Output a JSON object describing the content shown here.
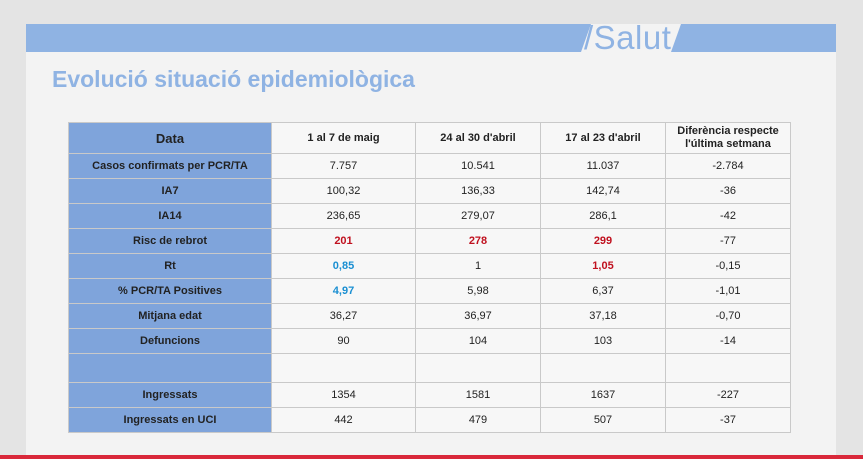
{
  "header": {
    "brand": "/Salut"
  },
  "title": "Evolució situació epidemiològica",
  "table": {
    "columns": [
      "Data",
      "1 al 7 de maig",
      "24 al 30 d'abril",
      "17 al 23 d'abril",
      "Diferència respecte l'última setmana"
    ],
    "rows": [
      {
        "label": "Casos confirmats per PCR/TA",
        "values": [
          "7.757",
          "10.541",
          "11.037",
          "-2.784"
        ]
      },
      {
        "label": "IA7",
        "values": [
          "100,32",
          "136,33",
          "142,74",
          "-36"
        ]
      },
      {
        "label": "IA14",
        "values": [
          "236,65",
          "279,07",
          "286,1",
          "-42"
        ]
      },
      {
        "label": "Risc de rebrot",
        "values": [
          "201",
          "278",
          "299",
          "-77"
        ]
      },
      {
        "label": "Rt",
        "values": [
          "0,85",
          "1",
          "1,05",
          "-0,15"
        ]
      },
      {
        "label": "% PCR/TA Positives",
        "values": [
          "4,97",
          "5,98",
          "6,37",
          "-1,01"
        ]
      },
      {
        "label": "Mitjana edat",
        "values": [
          "36,27",
          "36,97",
          "37,18",
          "-0,70"
        ]
      },
      {
        "label": "Defuncions",
        "values": [
          "90",
          "104",
          "103",
          "-14"
        ]
      },
      {
        "label": "Ingressats",
        "values": [
          "1354",
          "1581",
          "1637",
          "-227"
        ]
      },
      {
        "label": "Ingressats en UCI",
        "values": [
          "442",
          "479",
          "507",
          "-37"
        ]
      }
    ],
    "highlight_colors": {
      "red": "#c0111f",
      "blue": "#1a8fd2"
    }
  }
}
